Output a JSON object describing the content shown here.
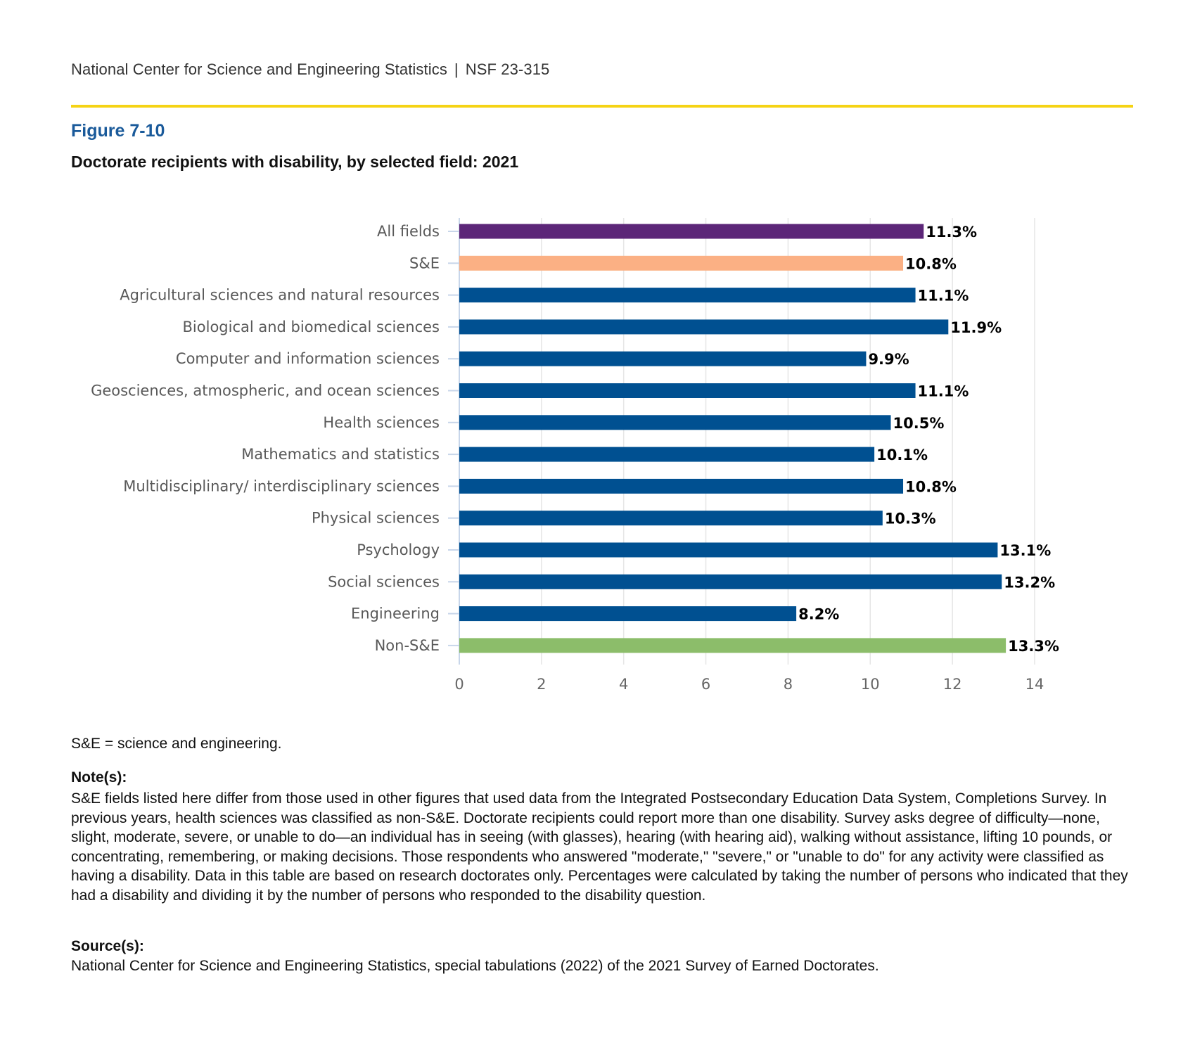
{
  "header": {
    "org": "National Center for Science and Engineering Statistics",
    "separator": "|",
    "report": "NSF 23-315"
  },
  "figure": {
    "number": "Figure 7-10",
    "title": "Doctorate recipients with disability, by selected field: 2021"
  },
  "chart_data": {
    "type": "bar",
    "orientation": "horizontal",
    "title": "Doctorate recipients with disability, by selected field: 2021",
    "xlabel": "",
    "ylabel": "",
    "xlim": [
      0,
      14
    ],
    "xticks": [
      0,
      2,
      4,
      6,
      8,
      10,
      12,
      14
    ],
    "grid": true,
    "value_suffix": "%",
    "categories": [
      "All fields",
      "S&E",
      "Agricultural sciences and natural resources",
      "Biological and biomedical sciences",
      "Computer and information sciences",
      "Geosciences, atmospheric, and ocean sciences",
      "Health sciences",
      "Mathematics and statistics",
      "Multidisciplinary/ interdisciplinary sciences",
      "Physical sciences",
      "Psychology",
      "Social sciences",
      "Engineering",
      "Non-S&E"
    ],
    "values": [
      11.3,
      10.8,
      11.1,
      11.9,
      9.9,
      11.1,
      10.5,
      10.1,
      10.8,
      10.3,
      13.1,
      13.2,
      8.2,
      13.3
    ],
    "labels": [
      "11.3%",
      "10.8%",
      "11.1%",
      "11.9%",
      "9.9%",
      "11.1%",
      "10.5%",
      "10.1%",
      "10.8%",
      "10.3%",
      "13.1%",
      "13.2%",
      "8.2%",
      "13.3%"
    ],
    "colors": [
      "#5c2678",
      "#fbb084",
      "#005091",
      "#005091",
      "#005091",
      "#005091",
      "#005091",
      "#005091",
      "#005091",
      "#005091",
      "#005091",
      "#005091",
      "#005091",
      "#8cbd6a"
    ],
    "axis_color": "#c8d6ea",
    "grid_color": "#e6e6e6"
  },
  "footnotes": {
    "abbreviation": "S&E = science and engineering.",
    "notes_heading": "Note(s):",
    "notes_text": "S&E fields listed here differ from those used in other figures that used data from the Integrated Postsecondary Education Data System, Completions Survey. In previous years, health sciences was classified as non-S&E. Doctorate recipients could report more than one disability. Survey asks degree of difficulty—none, slight, moderate, severe, or unable to do—an individual has in seeing (with glasses), hearing (with hearing aid), walking without assistance, lifting 10 pounds, or concentrating, remembering, or making decisions. Those respondents who answered \"moderate,\" \"severe,\" or \"unable to do\" for any activity were classified as having a disability. Data in this table are based on research doctorates only. Percentages were calculated by taking the number of persons who indicated that they had a disability and dividing it by the number of persons who responded to the disability question.",
    "source_heading": "Source(s):",
    "source_text": "National Center for Science and Engineering Statistics, special tabulations (2022) of the 2021 Survey of Earned Doctorates."
  }
}
